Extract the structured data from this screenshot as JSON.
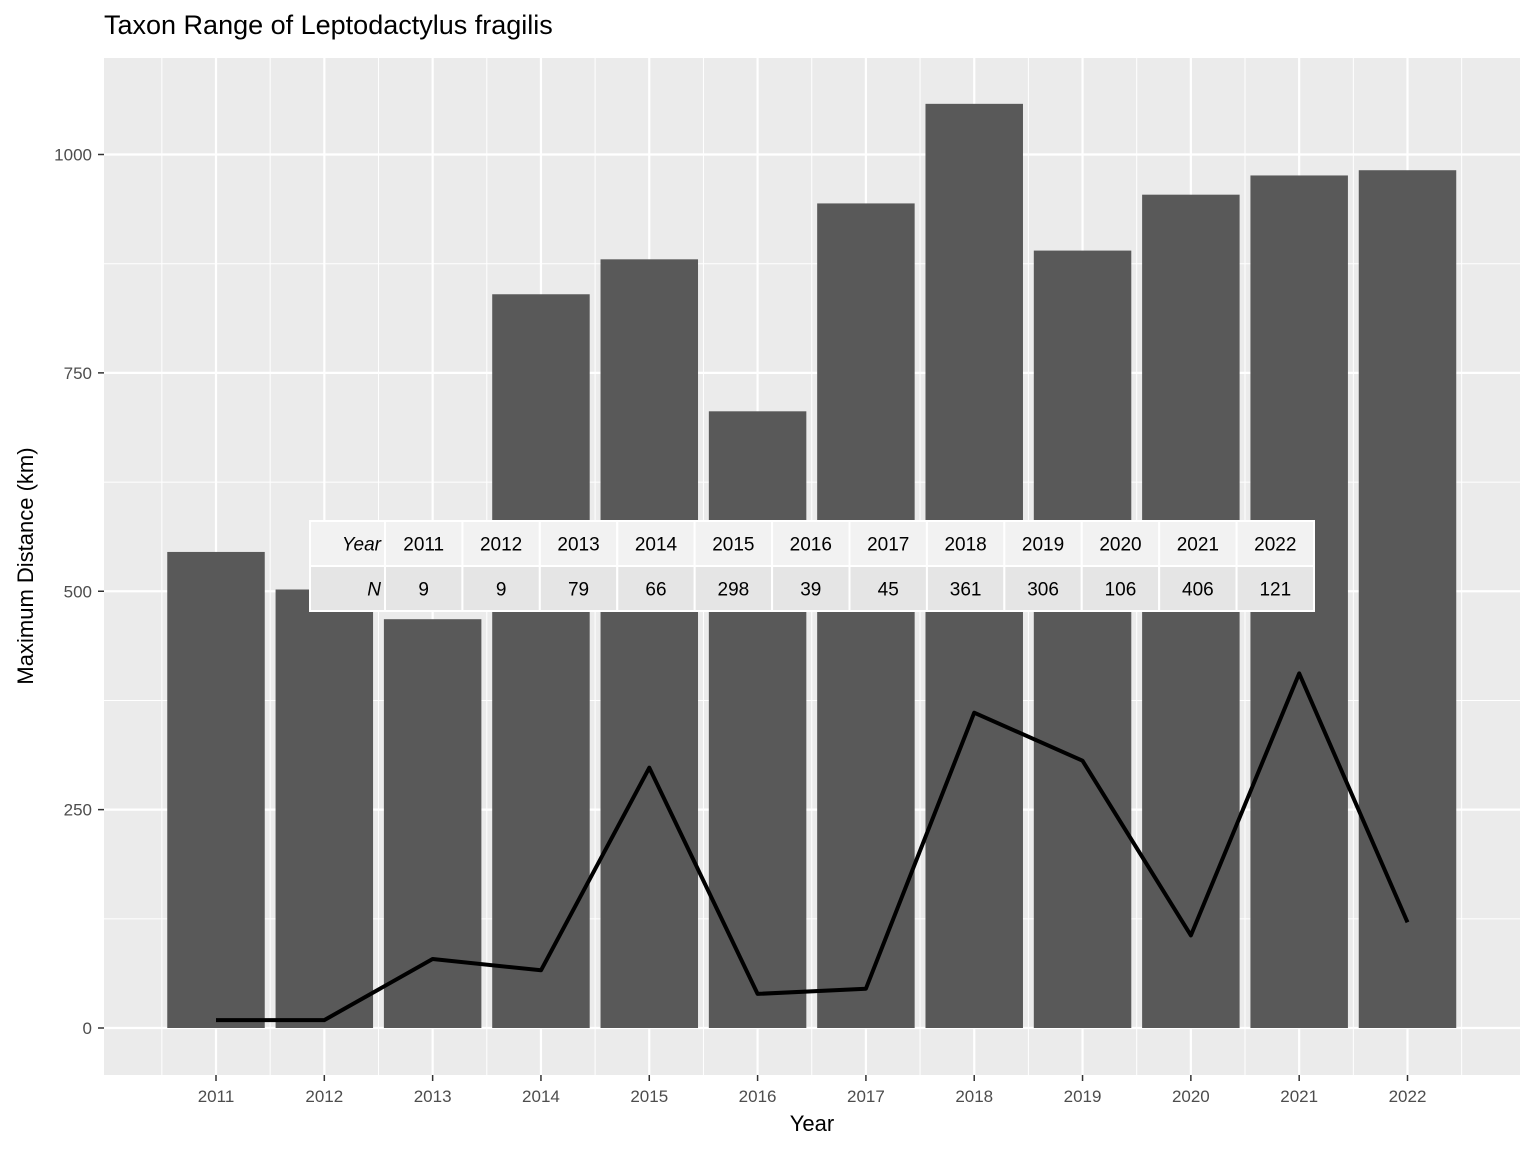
{
  "chart_data": {
    "type": "bar",
    "title": "Taxon Range of Leptodactylus fragilis",
    "xlabel": "Year",
    "ylabel": "Maximum Distance (km)",
    "categories": [
      "2011",
      "2012",
      "2013",
      "2014",
      "2015",
      "2016",
      "2017",
      "2018",
      "2019",
      "2020",
      "2021",
      "2022"
    ],
    "ylim": [
      -50,
      1100
    ],
    "yticks": [
      0,
      250,
      500,
      750,
      1000
    ],
    "grid": true,
    "series": [
      {
        "type": "bar",
        "values": [
          545,
          502,
          468,
          840,
          880,
          706,
          944,
          1058,
          890,
          954,
          976,
          982
        ],
        "color": "#595959"
      },
      {
        "type": "line",
        "values": [
          9,
          9,
          79,
          66,
          298,
          39,
          45,
          361,
          306,
          106,
          406,
          121
        ],
        "color": "#000000"
      }
    ],
    "table": {
      "row_labels": [
        "Year",
        "N"
      ],
      "years": [
        "2011",
        "2012",
        "2013",
        "2014",
        "2015",
        "2016",
        "2017",
        "2018",
        "2019",
        "2020",
        "2021",
        "2022"
      ],
      "n": [
        "9",
        "9",
        "79",
        "66",
        "298",
        "39",
        "45",
        "361",
        "306",
        "106",
        "406",
        "121"
      ]
    },
    "colors": {
      "panel": "#ebebeb",
      "grid": "#ffffff",
      "bar": "#595959",
      "line": "#000000"
    }
  }
}
